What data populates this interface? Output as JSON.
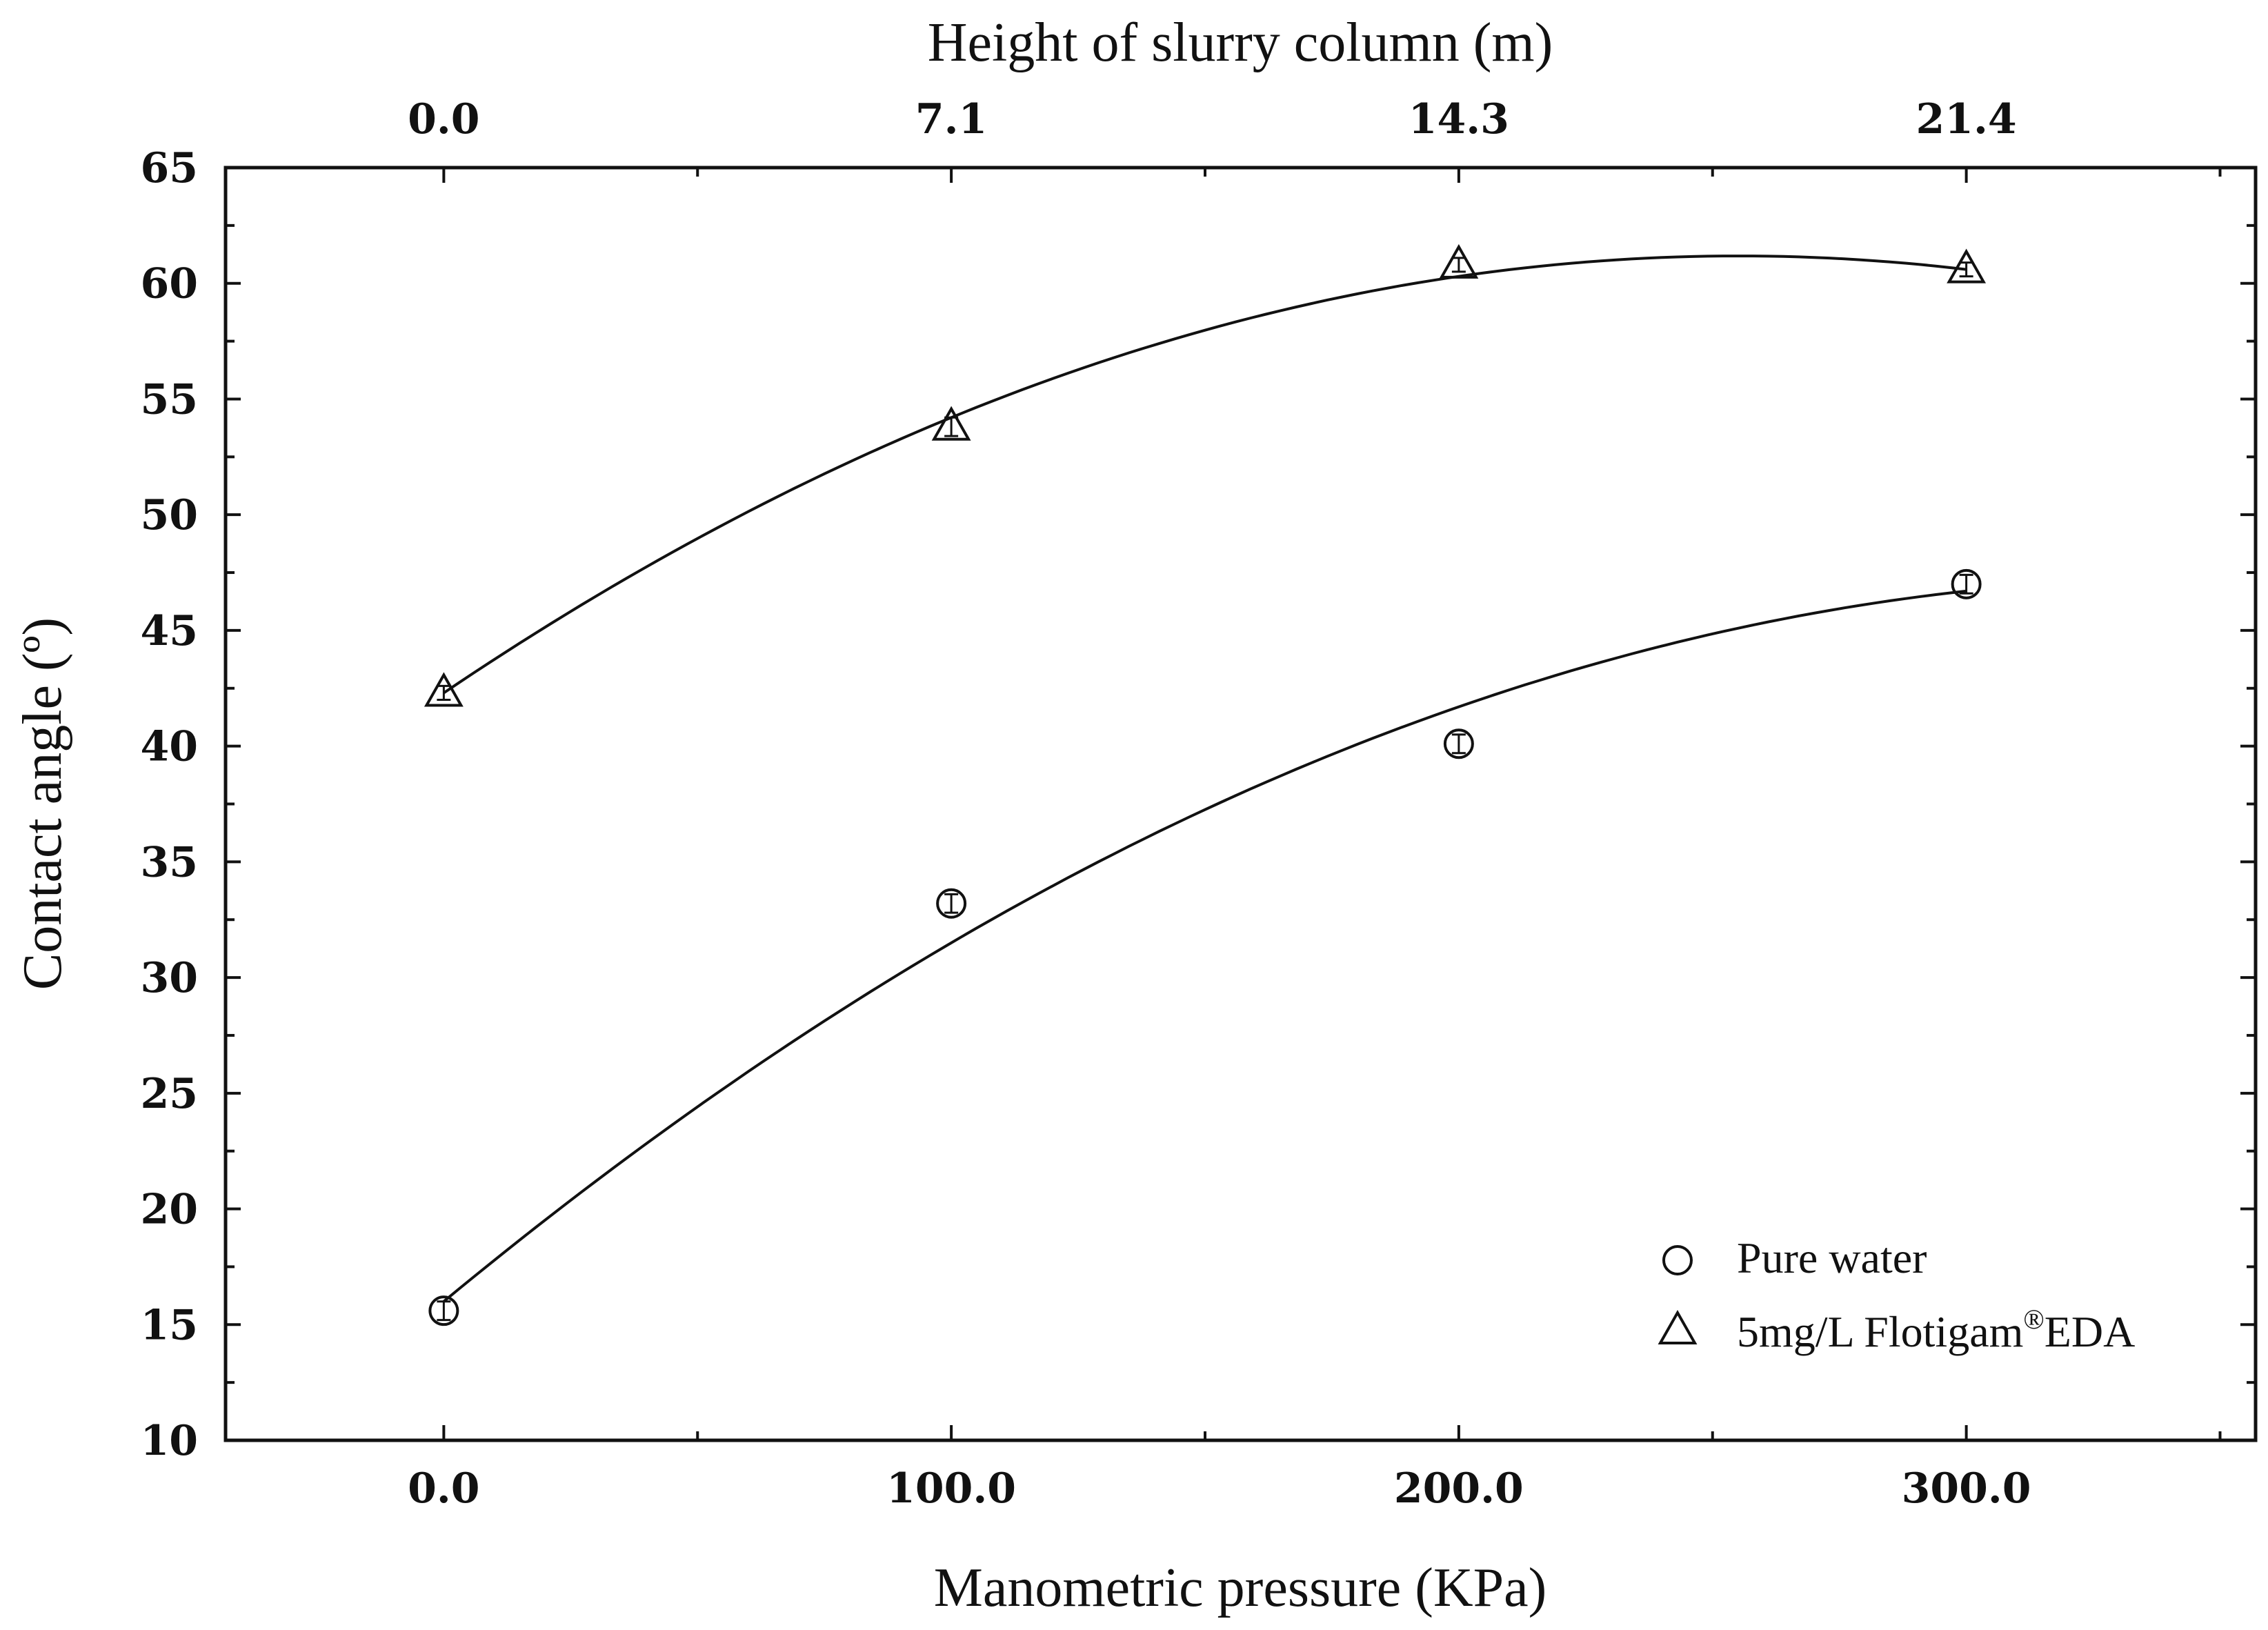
{
  "chart_data": {
    "type": "scatter",
    "x_axis": {
      "label": "Manometric pressure (KPa)",
      "range": [
        -43,
        357
      ],
      "ticks": [
        0,
        100,
        200,
        300
      ],
      "tick_labels": [
        "0.0",
        "100.0",
        "200.0",
        "300.0"
      ],
      "minor_ticks": [
        50,
        150,
        250,
        350
      ]
    },
    "x2_axis": {
      "label": "Height of slurry column (m)",
      "tick_labels": [
        "0.0",
        "7.1",
        "14.3",
        "21.4"
      ],
      "tick_positions_pressure": [
        0,
        100,
        200,
        300
      ]
    },
    "y_axis": {
      "label": "Contact angle (º)",
      "range": [
        10,
        65
      ],
      "ticks": [
        10,
        15,
        20,
        25,
        30,
        35,
        40,
        45,
        50,
        55,
        60,
        65
      ],
      "tick_labels": [
        "10",
        "15",
        "20",
        "25",
        "30",
        "35",
        "40",
        "45",
        "50",
        "55",
        "60",
        "65"
      ]
    },
    "series": [
      {
        "name": "Pure water",
        "marker": "circle",
        "x": [
          0,
          100,
          200,
          300
        ],
        "y": [
          15.6,
          33.2,
          40.1,
          47.0
        ],
        "error": [
          0.4,
          0.4,
          0.4,
          0.4
        ],
        "fit": {
          "type": "quadratic",
          "points": [
            [
              0,
              16.0
            ],
            [
              100,
              31.5
            ],
            [
              200,
              41.7
            ],
            [
              300,
              46.7
            ]
          ]
        }
      },
      {
        "name": "5mg/L Flotigam®EDA",
        "marker": "triangle",
        "x": [
          0,
          100,
          200,
          300
        ],
        "y": [
          42.3,
          53.8,
          60.8,
          60.6
        ],
        "error": [
          0.3,
          0.4,
          0.2,
          0.2
        ],
        "fit": {
          "type": "quadratic",
          "points": [
            [
              0,
              42.3
            ],
            [
              100,
              54.2
            ],
            [
              200,
              60.3
            ],
            [
              300,
              60.6
            ]
          ]
        }
      }
    ],
    "legend": {
      "position": "bottom-right",
      "entries": [
        {
          "marker": "circle",
          "label": "Pure water"
        },
        {
          "marker": "triangle",
          "label_main": "5mg/L Flotigam",
          "label_sup": "®",
          "label_tail": "EDA"
        }
      ]
    }
  }
}
